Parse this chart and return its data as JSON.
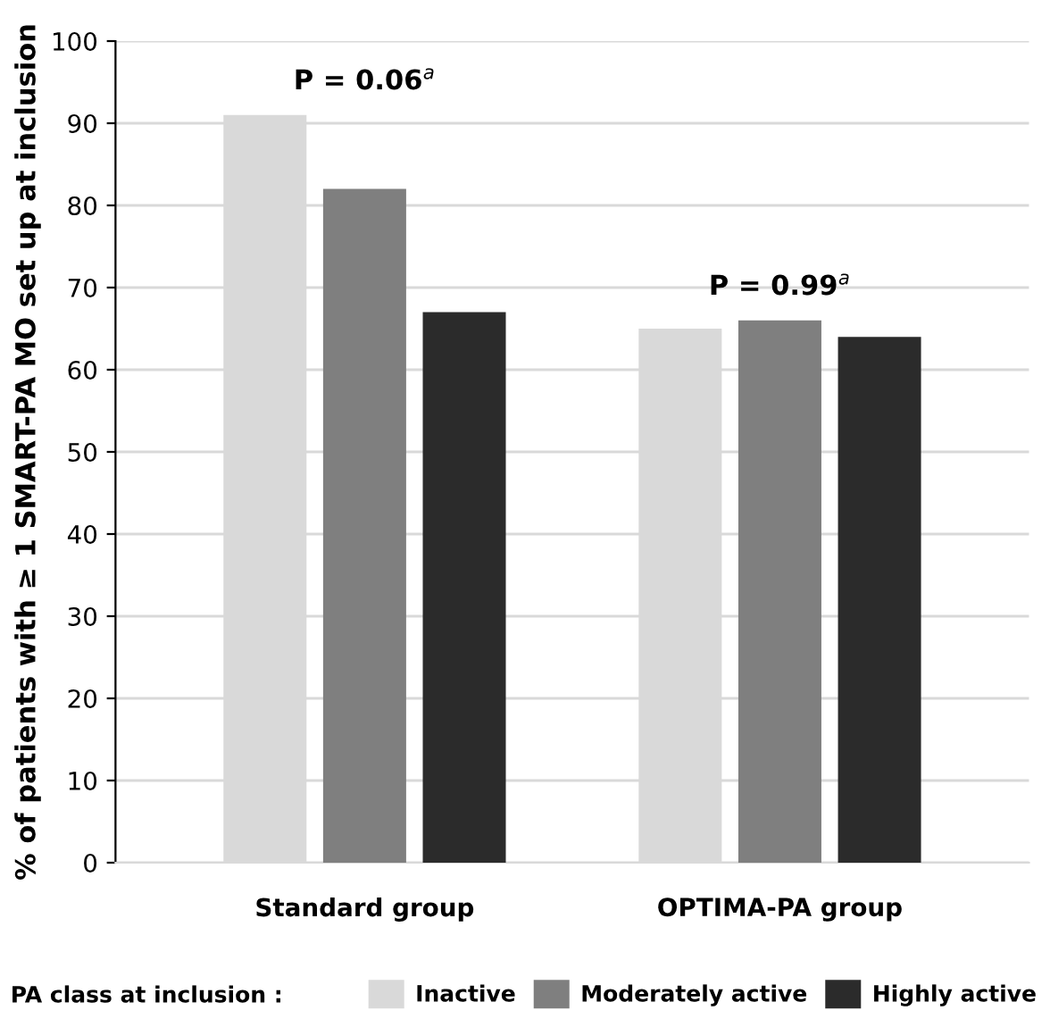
{
  "chart_data": {
    "type": "bar",
    "ylabel": "% of patients with ≥ 1 SMART-PA MO set up at inclusion",
    "categories": [
      "Standard group",
      "OPTIMA-PA group"
    ],
    "series": [
      {
        "name": "Inactive",
        "color": "#d9d9d9",
        "values": [
          91,
          65
        ]
      },
      {
        "name": "Moderately active",
        "color": "#7f7f7f",
        "values": [
          82,
          66
        ]
      },
      {
        "name": "Highly active",
        "color": "#2b2b2b",
        "values": [
          67,
          64
        ]
      }
    ],
    "legend_title": "PA class at inclusion :",
    "legend": "bottom",
    "annotations": [
      "P = 0.06$^{a}$",
      "P = 0.99$^{a}$"
    ],
    "ylim": [
      0,
      100
    ],
    "yticks": [
      0,
      10,
      20,
      30,
      40,
      50,
      60,
      70,
      80,
      90,
      100
    ],
    "grid": "y"
  }
}
